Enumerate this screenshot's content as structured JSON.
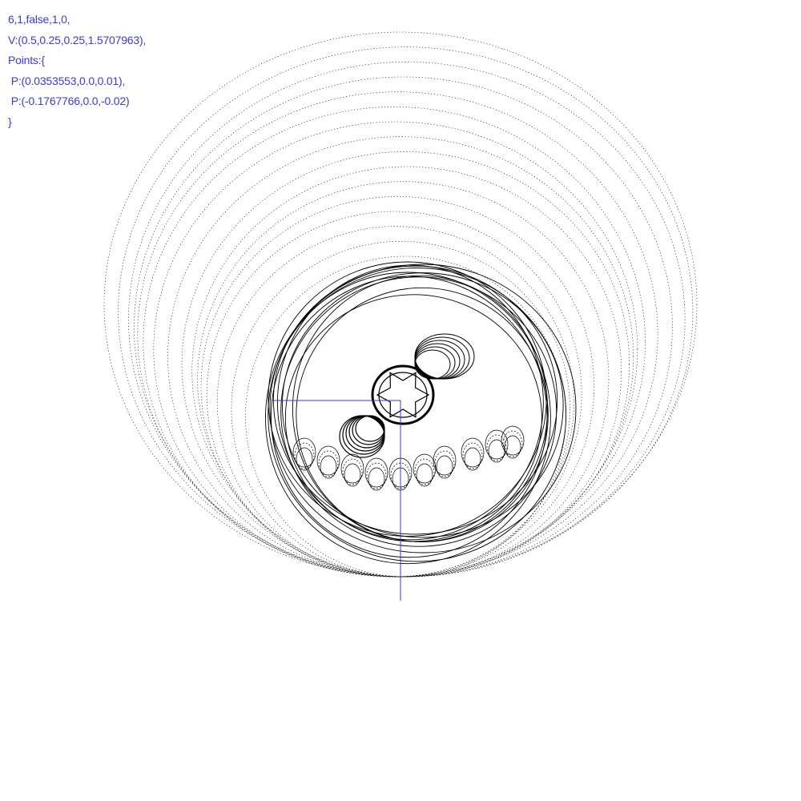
{
  "overlay": {
    "lines": [
      "6,1,false,1,0,",
      "V:(0.5,0.25,0.25,1.5707963),",
      "Points:{",
      " P:(0.0353553,0.0,0.01),",
      " P:(-0.1767766,0.0,-0.02)",
      "}"
    ]
  },
  "colors": {
    "text": "#3a3adf",
    "axis": "#3a3adf",
    "curve": "#000000",
    "background": "#ffffff"
  }
}
